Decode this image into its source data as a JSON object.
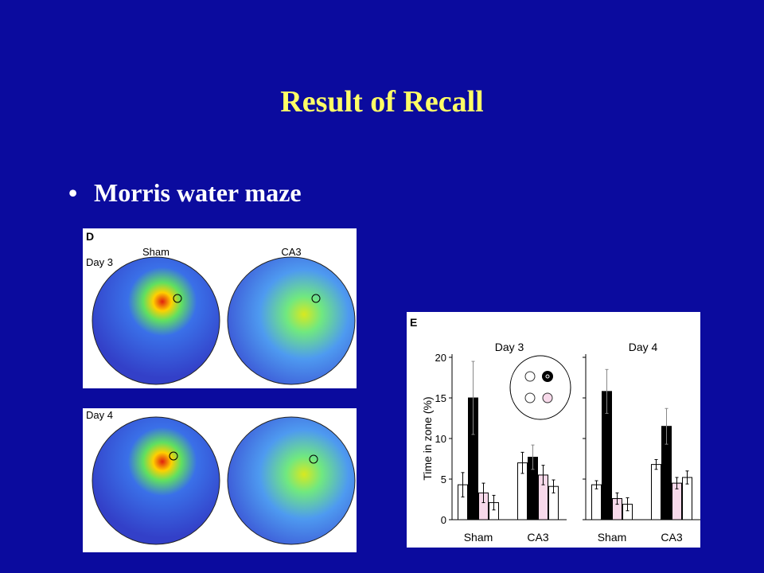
{
  "slide": {
    "title": "Result of Recall",
    "bullet": "Morris water maze"
  },
  "figure_d": {
    "label": "D",
    "columns": [
      "Sham",
      "CA3"
    ],
    "rows": [
      "Day 3",
      "Day 4"
    ]
  },
  "chart_data": {
    "type": "bar",
    "panel_label": "E",
    "ylabel": "Time in zone (%)",
    "panels": [
      "Day 3",
      "Day 4"
    ],
    "categories": [
      "Sham",
      "CA3",
      "Sham",
      "CA3"
    ],
    "ylim": [
      0,
      20
    ],
    "yticks": [
      0,
      5,
      10,
      15,
      20
    ],
    "series": [
      {
        "color": "#ffffff",
        "values": [
          4.3,
          7.0,
          4.3,
          6.8
        ],
        "errors": [
          1.5,
          1.3,
          0.5,
          0.6
        ]
      },
      {
        "color": "#000000",
        "values": [
          15,
          7.7,
          15.8,
          11.5
        ],
        "errors": [
          4.5,
          1.5,
          2.7,
          2.2
        ]
      },
      {
        "color": "#f7d9ea",
        "values": [
          3.3,
          5.5,
          2.6,
          4.5
        ],
        "errors": [
          1.2,
          1.2,
          0.7,
          0.7
        ]
      },
      {
        "color": "#ffffff",
        "values": [
          2.1,
          4.1,
          1.9,
          5.2
        ],
        "errors": [
          0.9,
          0.8,
          0.8,
          0.8
        ]
      }
    ]
  }
}
